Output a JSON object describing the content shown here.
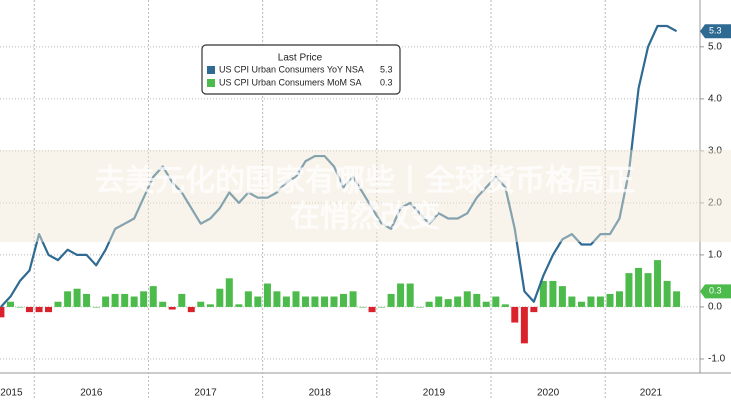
{
  "chart_data": {
    "type": "combo",
    "legend_title": "Last Price",
    "legend_position": "upper-center",
    "annotation": [
      "去美元化的国家有哪些丨全球货币格局正",
      "在悄然改变"
    ],
    "x": [
      2015.708,
      2015.792,
      2015.875,
      2015.958,
      2016.042,
      2016.125,
      2016.208,
      2016.292,
      2016.375,
      2016.458,
      2016.542,
      2016.625,
      2016.708,
      2016.792,
      2016.875,
      2016.958,
      2017.042,
      2017.125,
      2017.208,
      2017.292,
      2017.375,
      2017.458,
      2017.542,
      2017.625,
      2017.708,
      2017.792,
      2017.875,
      2017.958,
      2018.042,
      2018.125,
      2018.208,
      2018.292,
      2018.375,
      2018.458,
      2018.542,
      2018.625,
      2018.708,
      2018.792,
      2018.875,
      2018.958,
      2019.042,
      2019.125,
      2019.208,
      2019.292,
      2019.375,
      2019.458,
      2019.542,
      2019.625,
      2019.708,
      2019.792,
      2019.875,
      2019.958,
      2020.042,
      2020.125,
      2020.208,
      2020.292,
      2020.375,
      2020.458,
      2020.542,
      2020.625,
      2020.708,
      2020.792,
      2020.875,
      2020.958,
      2021.042,
      2021.125,
      2021.208,
      2021.292,
      2021.375,
      2021.458,
      2021.542,
      2021.625
    ],
    "series": [
      {
        "name": "US CPI Urban Consumers YoY NSA",
        "type": "line",
        "color": "#2f6a93",
        "values": [
          0.0,
          0.2,
          0.5,
          0.7,
          1.4,
          1.0,
          0.9,
          1.1,
          1.0,
          1.0,
          0.8,
          1.1,
          1.5,
          1.6,
          1.7,
          2.1,
          2.5,
          2.7,
          2.4,
          2.2,
          1.9,
          1.6,
          1.7,
          1.9,
          2.2,
          2.0,
          2.2,
          2.1,
          2.1,
          2.2,
          2.4,
          2.5,
          2.8,
          2.9,
          2.9,
          2.7,
          2.3,
          2.5,
          2.2,
          1.9,
          1.6,
          1.5,
          1.9,
          2.0,
          1.8,
          1.6,
          1.8,
          1.7,
          1.7,
          1.8,
          2.1,
          2.3,
          2.5,
          2.3,
          1.5,
          0.3,
          0.1,
          0.6,
          1.0,
          1.3,
          1.4,
          1.2,
          1.2,
          1.4,
          1.4,
          1.7,
          2.6,
          4.2,
          5.0,
          5.4,
          5.4,
          5.3
        ]
      },
      {
        "name": "US CPI Urban Consumers MoM SA",
        "type": "bar",
        "color": "#4cbb4c",
        "negative_color": "#d9222b",
        "values": [
          -0.2,
          0.1,
          0.0,
          -0.1,
          -0.1,
          -0.1,
          0.1,
          0.3,
          0.35,
          0.25,
          0.0,
          0.2,
          0.25,
          0.25,
          0.2,
          0.3,
          0.4,
          0.1,
          -0.05,
          0.25,
          -0.1,
          0.1,
          0.05,
          0.35,
          0.55,
          0.05,
          0.3,
          0.2,
          0.45,
          0.3,
          0.2,
          0.3,
          0.2,
          0.2,
          0.2,
          0.2,
          0.25,
          0.3,
          0.0,
          -0.1,
          0.0,
          0.25,
          0.45,
          0.45,
          0.0,
          0.1,
          0.2,
          0.15,
          0.2,
          0.3,
          0.25,
          0.1,
          0.2,
          0.05,
          -0.3,
          -0.7,
          -0.1,
          0.5,
          0.5,
          0.4,
          0.2,
          0.1,
          0.2,
          0.2,
          0.25,
          0.3,
          0.65,
          0.75,
          0.65,
          0.9,
          0.5,
          0.3
        ]
      }
    ],
    "xlim": [
      2015.7,
      2021.83
    ],
    "xticks": [
      {
        "value": 2015.8,
        "label": "2015"
      },
      {
        "value": 2016.5,
        "label": "2016"
      },
      {
        "value": 2017.5,
        "label": "2017"
      },
      {
        "value": 2018.5,
        "label": "2018"
      },
      {
        "value": 2019.5,
        "label": "2019"
      },
      {
        "value": 2020.5,
        "label": "2020"
      },
      {
        "value": 2021.4,
        "label": "2021"
      }
    ],
    "x_separators": [
      2016,
      2017,
      2018,
      2019,
      2020,
      2021
    ],
    "ylim": [
      -1.27,
      5.9
    ],
    "yticks": [
      {
        "value": -1,
        "label": "-1.0"
      },
      {
        "value": 0,
        "label": "0.0"
      },
      {
        "value": 1,
        "label": "1.0"
      },
      {
        "value": 2,
        "label": "2.0"
      },
      {
        "value": 3,
        "label": "3.0"
      },
      {
        "value": 4,
        "label": "4.0"
      },
      {
        "value": 5,
        "label": "5.0"
      }
    ],
    "y_axis_side": "right",
    "grid": true
  }
}
